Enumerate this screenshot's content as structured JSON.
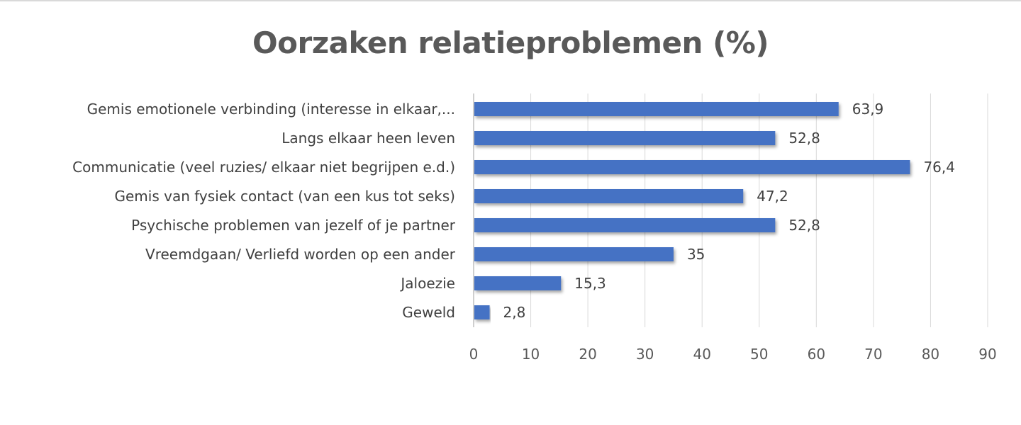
{
  "chart_data": {
    "type": "bar",
    "orientation": "horizontal",
    "title": "Oorzaken relatieproblemen (%)",
    "categories": [
      "Gemis emotionele verbinding (interesse in elkaar,...",
      "Langs elkaar heen leven",
      "Communicatie (veel ruzies/ elkaar niet begrijpen e.d.)",
      "Gemis van fysiek contact (van een kus tot seks)",
      "Psychische problemen van jezelf of je partner",
      "Vreemdgaan/ Verliefd worden op een ander",
      "Jaloezie",
      "Geweld"
    ],
    "values": [
      63.9,
      52.8,
      76.4,
      47.2,
      52.8,
      35,
      15.3,
      2.8
    ],
    "data_labels": [
      "63,9",
      "52,8",
      "76,4",
      "47,2",
      "52,8",
      "35",
      "15,3",
      "2,8"
    ],
    "xlim": [
      0,
      90
    ],
    "x_ticks": [
      0,
      10,
      20,
      30,
      40,
      50,
      60,
      70,
      80,
      90
    ],
    "grid": true,
    "legend": "none",
    "bar_color": "#4472c4"
  }
}
